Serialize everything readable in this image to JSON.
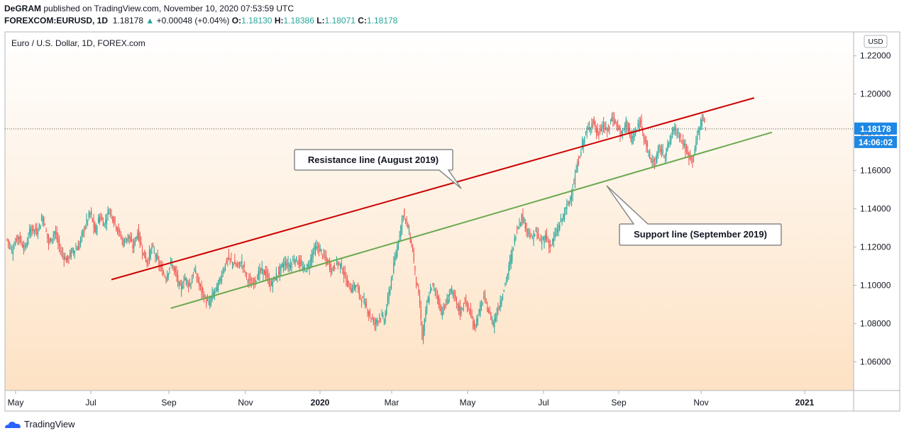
{
  "header": {
    "publisher": "DeGRAM",
    "published_text": "published on TradingView.com, November 10, 2020 07:53:59 UTC",
    "symbol": "FOREXCOM:EURUSD, 1D",
    "last": "1.18178",
    "change": "+0.00048 (+0.04%)",
    "o_label": "O:",
    "o_value": "1.18130",
    "h_label": "H:",
    "h_value": "1.18386",
    "l_label": "L:",
    "l_value": "1.18071",
    "c_label": "C:",
    "c_value": "1.18178"
  },
  "footer": {
    "brand": "TradingView"
  },
  "colors": {
    "up": "#26a69a",
    "down": "#ef5350",
    "resistance": "#cc0000",
    "support": "#6aa84f",
    "badge": "#1e88e5"
  },
  "chart_data": {
    "type": "candlestick",
    "title": "Euro / U.S. Dollar, 1D, FOREX.com",
    "currency": "USD",
    "ylim": [
      1.045,
      1.2325
    ],
    "y_ticks": [
      "1.06000",
      "1.08000",
      "1.10000",
      "1.12000",
      "1.14000",
      "1.16000",
      "1.18000",
      "1.20000",
      "1.22000"
    ],
    "x_ticks": [
      "May",
      "Jul",
      "Sep",
      "Nov",
      "2020",
      "Mar",
      "May",
      "Jul",
      "Sep",
      "Nov",
      "2021"
    ],
    "last_price": {
      "value": 1.18178,
      "label": "1.18178",
      "countdown": "14:06:02"
    },
    "close_path": [
      [
        0,
        1.124
      ],
      [
        4,
        1.118
      ],
      [
        9,
        1.126
      ],
      [
        15,
        1.119
      ],
      [
        20,
        1.13
      ],
      [
        25,
        1.128
      ],
      [
        30,
        1.136
      ],
      [
        35,
        1.122
      ],
      [
        40,
        1.128
      ],
      [
        45,
        1.118
      ],
      [
        50,
        1.113
      ],
      [
        55,
        1.118
      ],
      [
        60,
        1.12
      ],
      [
        65,
        1.13
      ],
      [
        70,
        1.138
      ],
      [
        74,
        1.128
      ],
      [
        78,
        1.136
      ],
      [
        82,
        1.132
      ],
      [
        86,
        1.14
      ],
      [
        90,
        1.134
      ],
      [
        94,
        1.128
      ],
      [
        98,
        1.122
      ],
      [
        102,
        1.126
      ],
      [
        106,
        1.12
      ],
      [
        110,
        1.128
      ],
      [
        114,
        1.118
      ],
      [
        118,
        1.112
      ],
      [
        122,
        1.12
      ],
      [
        126,
        1.114
      ],
      [
        130,
        1.108
      ],
      [
        134,
        1.104
      ],
      [
        138,
        1.112
      ],
      [
        142,
        1.106
      ],
      [
        146,
        1.098
      ],
      [
        150,
        1.104
      ],
      [
        154,
        1.1
      ],
      [
        158,
        1.108
      ],
      [
        162,
        1.1
      ],
      [
        166,
        1.094
      ],
      [
        170,
        1.09
      ],
      [
        174,
        1.096
      ],
      [
        178,
        1.1
      ],
      [
        182,
        1.108
      ],
      [
        186,
        1.114
      ],
      [
        190,
        1.112
      ],
      [
        194,
        1.11
      ],
      [
        198,
        1.112
      ],
      [
        202,
        1.104
      ],
      [
        206,
        1.1
      ],
      [
        210,
        1.104
      ],
      [
        214,
        1.108
      ],
      [
        218,
        1.106
      ],
      [
        222,
        1.1
      ],
      [
        226,
        1.104
      ],
      [
        230,
        1.108
      ],
      [
        234,
        1.112
      ],
      [
        238,
        1.11
      ],
      [
        242,
        1.114
      ],
      [
        246,
        1.112
      ],
      [
        250,
        1.108
      ],
      [
        254,
        1.11
      ],
      [
        258,
        1.118
      ],
      [
        262,
        1.12
      ],
      [
        266,
        1.116
      ],
      [
        270,
        1.112
      ],
      [
        274,
        1.108
      ],
      [
        278,
        1.112
      ],
      [
        282,
        1.11
      ],
      [
        286,
        1.102
      ],
      [
        290,
        1.098
      ],
      [
        294,
        1.1
      ],
      [
        298,
        1.094
      ],
      [
        302,
        1.09
      ],
      [
        306,
        1.084
      ],
      [
        310,
        1.08
      ],
      [
        314,
        1.084
      ],
      [
        318,
        1.082
      ],
      [
        322,
        1.096
      ],
      [
        326,
        1.11
      ],
      [
        330,
        1.124
      ],
      [
        334,
        1.138
      ],
      [
        338,
        1.13
      ],
      [
        342,
        1.118
      ],
      [
        344,
        1.106
      ],
      [
        348,
        1.09
      ],
      [
        350,
        1.072
      ],
      [
        354,
        1.09
      ],
      [
        358,
        1.1
      ],
      [
        362,
        1.096
      ],
      [
        366,
        1.086
      ],
      [
        370,
        1.09
      ],
      [
        374,
        1.098
      ],
      [
        378,
        1.092
      ],
      [
        382,
        1.086
      ],
      [
        386,
        1.092
      ],
      [
        390,
        1.086
      ],
      [
        394,
        1.078
      ],
      [
        398,
        1.086
      ],
      [
        402,
        1.094
      ],
      [
        406,
        1.086
      ],
      [
        410,
        1.08
      ],
      [
        414,
        1.088
      ],
      [
        418,
        1.096
      ],
      [
        422,
        1.106
      ],
      [
        426,
        1.118
      ],
      [
        430,
        1.13
      ],
      [
        434,
        1.136
      ],
      [
        438,
        1.13
      ],
      [
        442,
        1.124
      ],
      [
        446,
        1.128
      ],
      [
        450,
        1.122
      ],
      [
        454,
        1.126
      ],
      [
        458,
        1.12
      ],
      [
        462,
        1.126
      ],
      [
        466,
        1.132
      ],
      [
        470,
        1.138
      ],
      [
        474,
        1.144
      ],
      [
        478,
        1.154
      ],
      [
        482,
        1.166
      ],
      [
        486,
        1.176
      ],
      [
        490,
        1.182
      ],
      [
        494,
        1.186
      ],
      [
        498,
        1.178
      ],
      [
        502,
        1.184
      ],
      [
        506,
        1.18
      ],
      [
        510,
        1.188
      ],
      [
        514,
        1.184
      ],
      [
        518,
        1.178
      ],
      [
        522,
        1.186
      ],
      [
        526,
        1.176
      ],
      [
        530,
        1.18
      ],
      [
        534,
        1.186
      ],
      [
        538,
        1.176
      ],
      [
        542,
        1.166
      ],
      [
        546,
        1.164
      ],
      [
        550,
        1.172
      ],
      [
        554,
        1.168
      ],
      [
        558,
        1.174
      ],
      [
        562,
        1.182
      ],
      [
        566,
        1.18
      ],
      [
        570,
        1.174
      ],
      [
        574,
        1.168
      ],
      [
        578,
        1.166
      ],
      [
        582,
        1.178
      ],
      [
        586,
        1.188
      ],
      [
        589,
        1.182
      ]
    ],
    "annotations": [
      {
        "label": "Resistance line (August 2019)",
        "type": "trendline",
        "from": [
          88,
          1.103
        ],
        "to": [
          630,
          1.198
        ]
      },
      {
        "label": "Support line (September 2019)",
        "type": "trendline",
        "from": [
          138,
          1.088
        ],
        "to": [
          645,
          1.18
        ]
      }
    ]
  }
}
